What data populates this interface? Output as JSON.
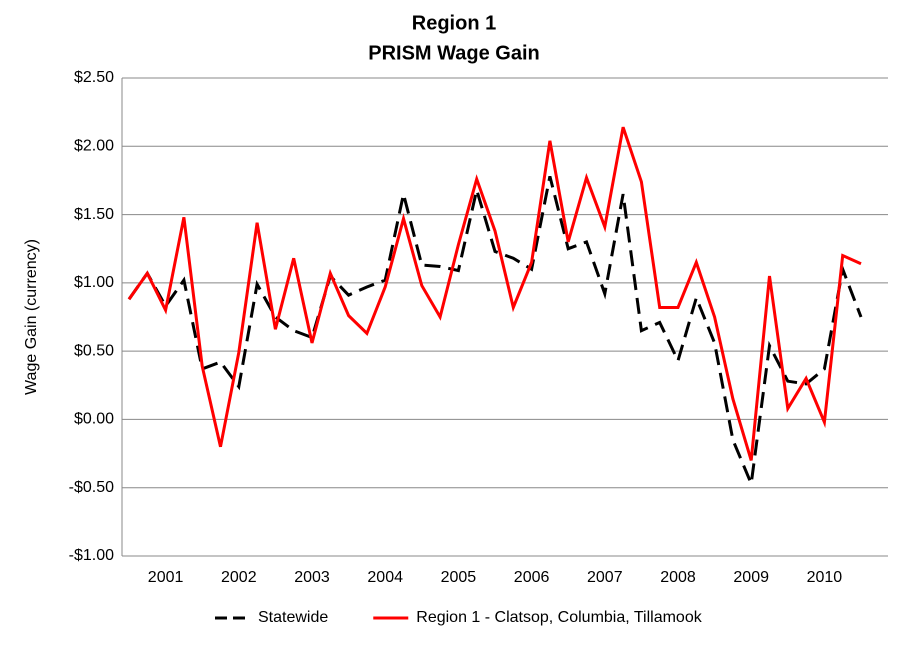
{
  "chart_data": {
    "type": "line",
    "title": "Region 1",
    "subtitle": "PRISM Wage Gain",
    "y_label": "Wage Gain (currency)",
    "categories": [
      null,
      null,
      "2001",
      null,
      null,
      null,
      "2002",
      null,
      null,
      null,
      "2003",
      null,
      null,
      null,
      "2004",
      null,
      null,
      null,
      "2005",
      null,
      null,
      null,
      "2006",
      null,
      null,
      null,
      "2007",
      null,
      null,
      null,
      "2008",
      null,
      null,
      null,
      "2009",
      null,
      null,
      null,
      "2010",
      null,
      null
    ],
    "series": [
      {
        "name": "Statewide",
        "color": "#000000",
        "dashed": true,
        "values": [
          0.88,
          1.07,
          0.83,
          1.02,
          0.37,
          0.42,
          0.24,
          0.99,
          0.75,
          0.65,
          0.6,
          1.05,
          0.91,
          0.97,
          1.02,
          1.65,
          1.13,
          1.12,
          1.09,
          1.68,
          1.23,
          1.18,
          1.1,
          1.78,
          1.25,
          1.3,
          0.92,
          1.65,
          0.65,
          0.71,
          0.43,
          0.89,
          0.56,
          -0.15,
          -0.47,
          0.54,
          0.28,
          0.26,
          0.37,
          1.1,
          0.75
        ]
      },
      {
        "name": "Region 1 - Clatsop, Columbia, Tillamook",
        "color": "#ff0000",
        "dashed": false,
        "values": [
          0.88,
          1.07,
          0.8,
          1.48,
          0.39,
          -0.2,
          0.49,
          1.44,
          0.66,
          1.18,
          0.56,
          1.07,
          0.76,
          0.63,
          0.97,
          1.47,
          0.98,
          0.75,
          1.28,
          1.76,
          1.38,
          0.82,
          1.15,
          2.04,
          1.3,
          1.77,
          1.41,
          2.14,
          1.74,
          0.82,
          0.82,
          1.15,
          0.75,
          0.15,
          -0.3,
          1.05,
          0.08,
          0.3,
          -0.02,
          1.2,
          1.14
        ]
      }
    ],
    "ylim": [
      -1.0,
      2.5
    ],
    "yticks": [
      {
        "value": -1.0,
        "label": "-$1.00"
      },
      {
        "value": -0.5,
        "label": "-$0.50"
      },
      {
        "value": 0,
        "label": "$0.00"
      },
      {
        "value": 0.5,
        "label": "$0.50"
      },
      {
        "value": 1.0,
        "label": "$1.00"
      },
      {
        "value": 1.5,
        "label": "$1.50"
      },
      {
        "value": 2.0,
        "label": "$2.00"
      },
      {
        "value": 2.5,
        "label": "$2.50"
      }
    ],
    "grid": true,
    "legend": "bottom"
  }
}
